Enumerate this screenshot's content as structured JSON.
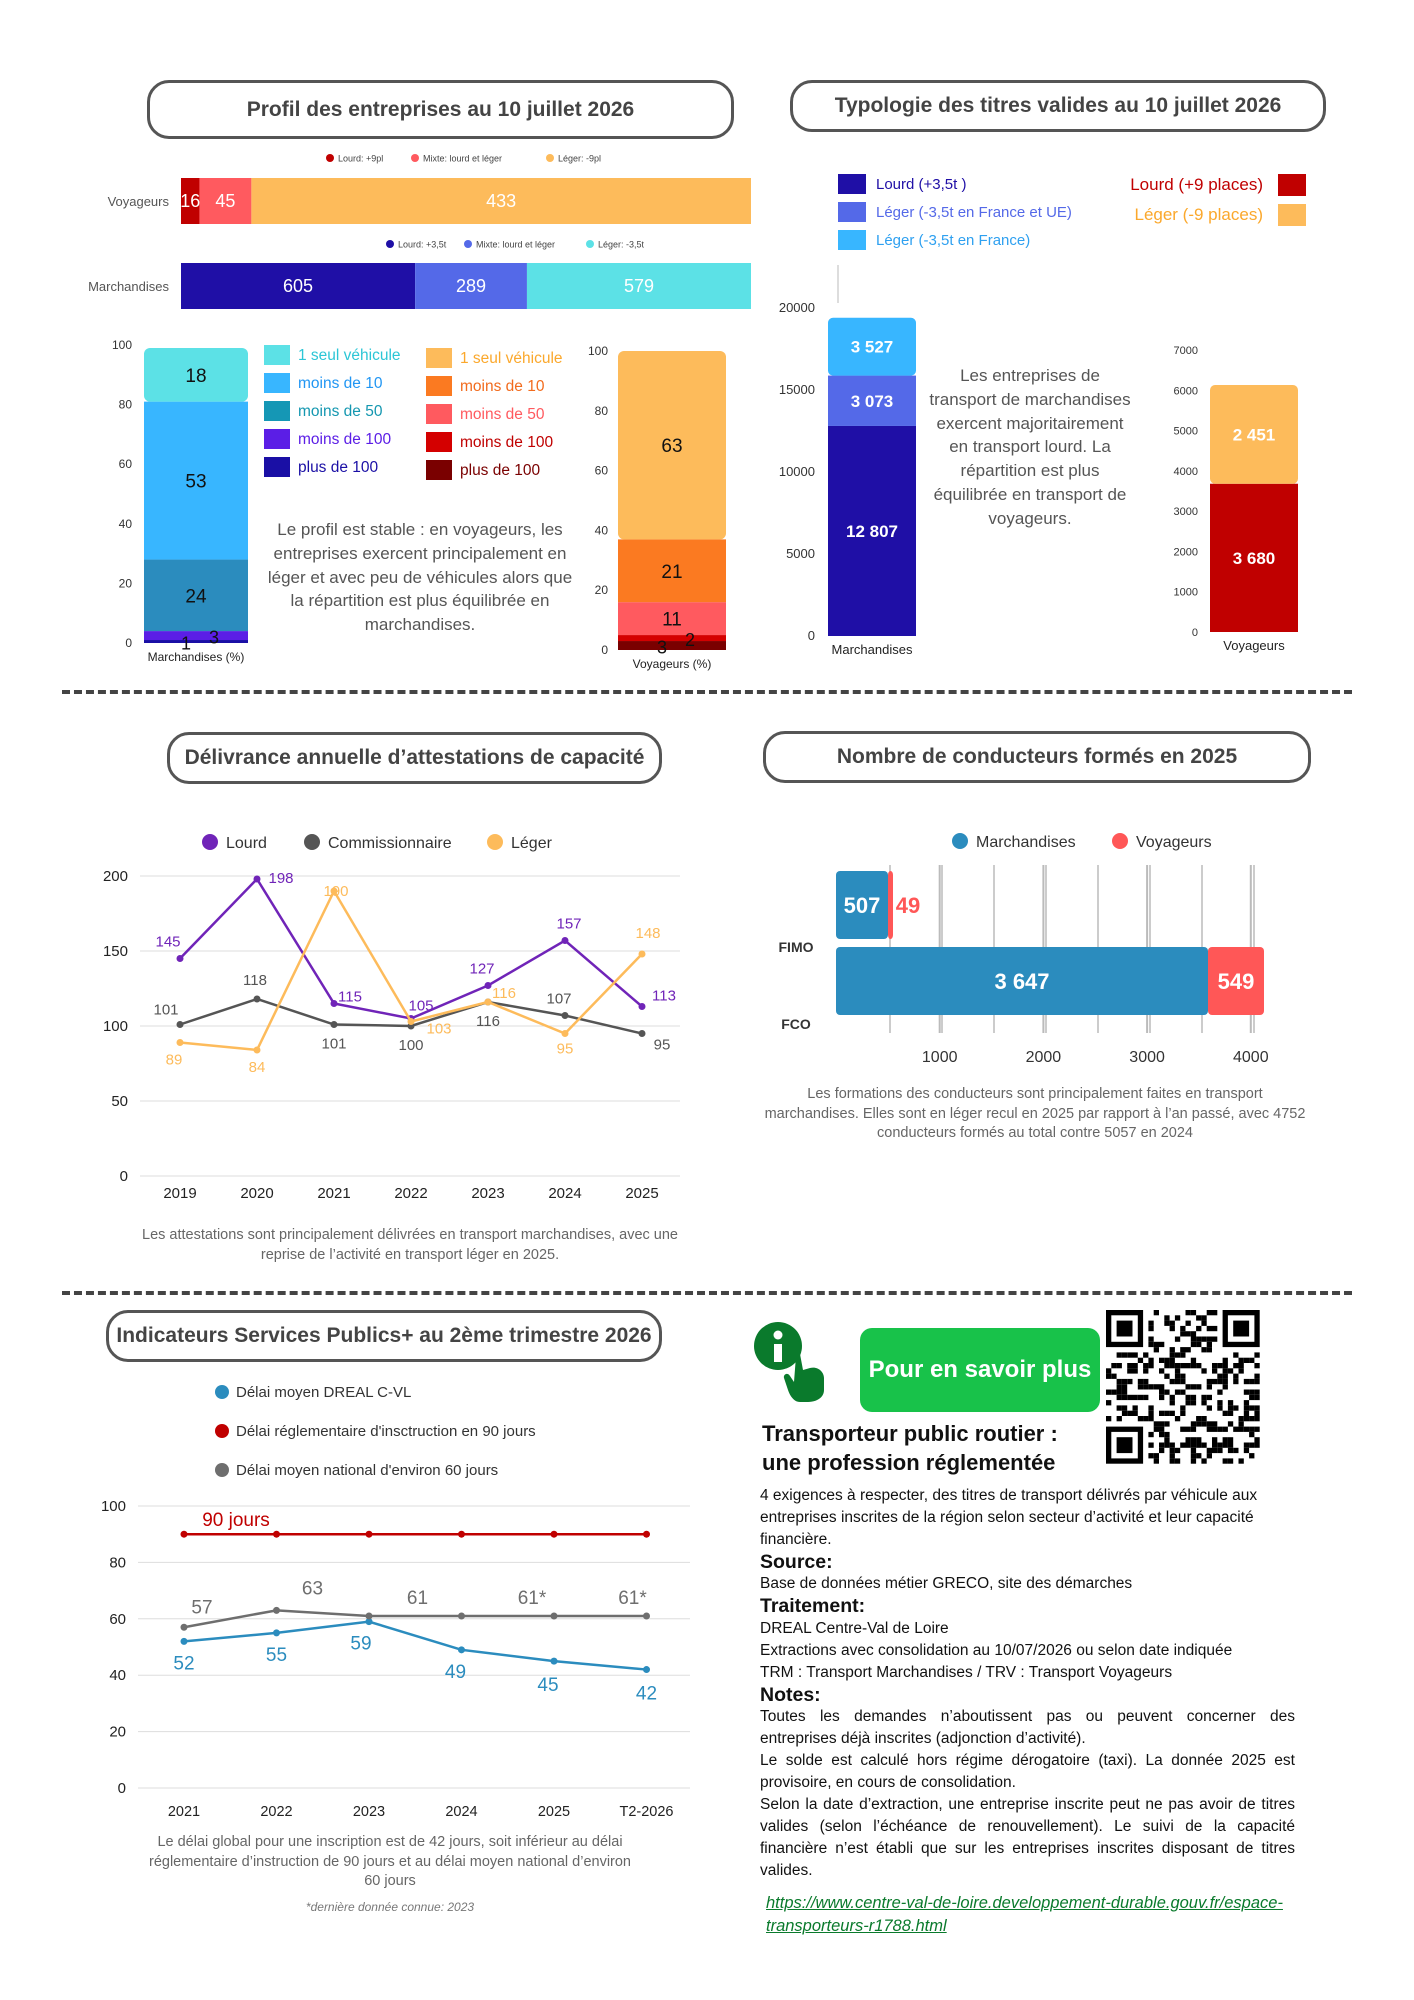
{
  "section1": {
    "title": "Profil des entreprises au 10 juillet 2026",
    "note": "Le profil est stable : en voyageurs, les entreprises exercent principalement en léger et avec peu de véhicules alors que la répartition est plus équilibrée en marchandises."
  },
  "section2": {
    "title": "Typologie des titres valides au 10 juillet 2026",
    "note": "Les entreprises de transport de marchandises exercent majoritairement en transport lourd. La répartition est plus équilibrée en transport de voyageurs."
  },
  "section3": {
    "title": "Délivrance annuelle d’attestations de capacité",
    "note": "Les attestations sont principalement délivrées en transport marchandises, avec une reprise de l’activité en transport léger en 2025."
  },
  "section4": {
    "title": "Nombre de conducteurs formés en 2025",
    "note": "Les formations des conducteurs sont principalement faites en transport marchandises. Elles sont en léger recul en 2025 par rapport à l’an passé, avec 4752 conducteurs formés au total contre 5057 en 2024"
  },
  "section5": {
    "title": "Indicateurs Services Publics+ au 2ème trimestre 2026",
    "note": "Le délai global pour une inscription est de 42 jours, soit inférieur au délai réglementaire d’instruction de 90 jours et au délai moyen national d’environ 60 jours",
    "footnote": "*dernière donnée connue: 2023"
  },
  "info": {
    "button": "Pour en savoir plus",
    "pro_title": "Transporteur public routier : une profession réglementée",
    "intro": "4 exigences à respecter, des titres  de transport délivrés par véhicule aux entreprises inscrites de la région selon secteur d’activité et leur capacité financière.",
    "source_h": "Source:",
    "source": "Base de données métier GRECO, site des démarches",
    "traitement_h": "Traitement:",
    "traitement_1": "DREAL Centre-Val de Loire",
    "traitement_2": "Extractions avec consolidation au 10/07/2026 ou selon date indiquée",
    "traitement_3": "TRM : Transport Marchandises / TRV : Transport Voyageurs",
    "notes_h": "Notes:",
    "notes_1": "Toutes les demandes n’aboutissent pas ou peuvent concerner des entreprises déjà inscrites (adjonction d’activité).",
    "notes_2": "Le solde est calculé hors régime dérogatoire (taxi). La donnée 2025 est provisoire, en cours de consolidation.",
    "notes_3": "Selon la date d’extraction, une entreprise inscrite peut ne pas avoir de titres valides (selon l’échéance de renouvellement). Le suivi de la capacité financière n’est établi que sur les entreprises inscrites disposant de titres valides.",
    "link": "https://www.centre-val-de-loire.developpement-durable.gouv.fr/espace-transporteurs-r1788.html"
  },
  "chart_data": [
    {
      "id": "profil-hbar",
      "type": "bar",
      "orientation": "horizontal-stacked",
      "rows": [
        {
          "category": "Voyageurs",
          "legend": [
            "Lourd: +9pl",
            "Mixte: lourd et léger",
            "Léger: -9pl"
          ],
          "values": [
            16,
            45,
            433
          ],
          "colors": [
            "#c00000",
            "#ff5a5f",
            "#fdbb5b"
          ]
        },
        {
          "category": "Marchandises",
          "legend": [
            "Lourd: +3,5t",
            "Mixte: lourd et léger",
            "Léger: -3,5t"
          ],
          "values": [
            605,
            289,
            579
          ],
          "colors": [
            "#1f0fa6",
            "#5469e8",
            "#5ce1e6"
          ]
        }
      ]
    },
    {
      "id": "profil-taille-march",
      "type": "bar",
      "orientation": "vertical-stacked",
      "xlabel": "Marchandises (%)",
      "ylim": [
        0,
        100
      ],
      "yticks": [
        0,
        20,
        40,
        60,
        80,
        100
      ],
      "series": [
        {
          "name": "plus de 100",
          "value": 1,
          "color": "#1a0fa5"
        },
        {
          "name": "moins de 100",
          "value": 3,
          "color": "#5b1ee6"
        },
        {
          "name": "moins de 50",
          "value": 24,
          "color": "#2b8cbe"
        },
        {
          "name": "moins de 10",
          "value": 53,
          "color": "#38b6ff"
        },
        {
          "name": "1 seul véhicule",
          "value": 18,
          "color": "#5ce1e6"
        }
      ],
      "legend_colors": [
        "#5ce1e6",
        "#38b6ff",
        "#1597b5",
        "#5b1ee6",
        "#1a0fa5"
      ],
      "legend_text_colors": [
        "#2cc6d6",
        "#2196f3",
        "#1497b0",
        "#5b1ee6",
        "#1a0fa5"
      ]
    },
    {
      "id": "profil-taille-voy",
      "type": "bar",
      "orientation": "vertical-stacked",
      "xlabel": "Voyageurs (%)",
      "ylim": [
        0,
        100
      ],
      "yticks": [
        0,
        20,
        40,
        60,
        80,
        100
      ],
      "series": [
        {
          "name": "plus de 100",
          "value": 3,
          "color": "#7a0000"
        },
        {
          "name": "moins de 100",
          "value": 2,
          "color": "#d40000"
        },
        {
          "name": "moins de 50",
          "value": 11,
          "color": "#ff5a5f"
        },
        {
          "name": "moins de 10",
          "value": 21,
          "color": "#fb7a21"
        },
        {
          "name": "1 seul véhicule",
          "value": 63,
          "color": "#fdbb5b"
        }
      ],
      "legend_text_colors": [
        "#fba82c",
        "#f26b1d",
        "#ff5a5f",
        "#c00000",
        "#7a0000"
      ]
    },
    {
      "id": "titres-march",
      "type": "bar",
      "orientation": "vertical-stacked",
      "xlabel": "Marchandises",
      "ylim": [
        0,
        20000
      ],
      "yticks": [
        0,
        5000,
        10000,
        15000,
        20000
      ],
      "series": [
        {
          "name": "Lourd (+3,5t )",
          "value": 12807,
          "label": "12 807",
          "color": "#1f0fa6"
        },
        {
          "name": "Léger (-3,5t en France et UE)",
          "value": 3073,
          "label": "3 073",
          "color": "#5469e8"
        },
        {
          "name": "Léger (-3,5t en France)",
          "value": 3527,
          "label": "3 527",
          "color": "#38b6ff"
        }
      ]
    },
    {
      "id": "titres-voy",
      "type": "bar",
      "orientation": "vertical-stacked",
      "xlabel": "Voyageurs",
      "ylim": [
        0,
        7000
      ],
      "yticks": [
        0,
        1000,
        2000,
        3000,
        4000,
        5000,
        6000,
        7000
      ],
      "series": [
        {
          "name": "Lourd (+9 places)",
          "value": 3680,
          "label": "3 680",
          "color": "#c00000"
        },
        {
          "name": "Léger (-9 places)",
          "value": 2451,
          "label": "2 451",
          "color": "#fdbb5b"
        }
      ]
    },
    {
      "id": "attestations",
      "type": "line",
      "x": [
        "2019",
        "2020",
        "2021",
        "2022",
        "2023",
        "2024",
        "2025"
      ],
      "ylim": [
        0,
        200
      ],
      "yticks": [
        0,
        50,
        100,
        150,
        200
      ],
      "series": [
        {
          "name": "Lourd",
          "color": "#7024b8",
          "values": [
            145,
            198,
            115,
            105,
            127,
            157,
            113
          ]
        },
        {
          "name": "Commissionnaire",
          "color": "#555555",
          "values": [
            101,
            118,
            101,
            100,
            116,
            107,
            95
          ]
        },
        {
          "name": "Léger",
          "color": "#fdbb5b",
          "values": [
            89,
            84,
            190,
            103,
            116,
            95,
            148
          ]
        }
      ]
    },
    {
      "id": "conducteurs",
      "type": "bar",
      "orientation": "horizontal-stacked",
      "xticks": [
        1000,
        2000,
        3000,
        4000
      ],
      "xticklabels": [
        "1000",
        "2000",
        "3000",
        "4000"
      ],
      "categories": [
        "FIMO",
        "FCO"
      ],
      "series": [
        {
          "name": "Marchandises",
          "color": "#2b8cbe",
          "values": [
            507,
            3647
          ],
          "labels": [
            "507",
            "3 647"
          ]
        },
        {
          "name": "Voyageurs",
          "color": "#ff5757",
          "values": [
            49,
            549
          ],
          "labels": [
            "49",
            "549"
          ]
        }
      ]
    },
    {
      "id": "delais",
      "type": "line",
      "x": [
        "2021",
        "2022",
        "2023",
        "2024",
        "2025",
        "T2-2026"
      ],
      "ylim": [
        0,
        100
      ],
      "yticks": [
        0,
        20,
        40,
        60,
        80,
        100
      ],
      "series": [
        {
          "name": "Délai moyen DREAL C-VL",
          "color": "#2b8cbe",
          "values": [
            52,
            55,
            59,
            49,
            45,
            42
          ],
          "labels": [
            "52",
            "55",
            "59",
            "49",
            "45",
            "42"
          ]
        },
        {
          "name": "Délai réglementaire d'insctruction en 90 jours",
          "color": "#c00000",
          "values": [
            90,
            90,
            90,
            90,
            90,
            90
          ],
          "labels": [
            "90 jours",
            "",
            "",
            "",
            "",
            ""
          ]
        },
        {
          "name": "Délai moyen national d'environ 60 jours",
          "color": "#6e6e6e",
          "values": [
            57,
            63,
            61,
            61,
            61,
            61
          ],
          "labels": [
            "57",
            "63",
            "",
            "61",
            "61*",
            "61*"
          ]
        }
      ]
    }
  ]
}
